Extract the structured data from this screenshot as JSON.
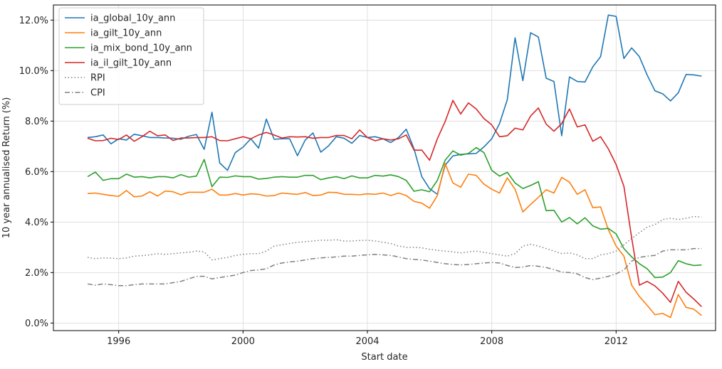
{
  "chart_data": {
    "type": "line",
    "title": "",
    "xlabel": "Start date",
    "ylabel": "10 year annualised Return (%)",
    "xlim": [
      1993.9,
      2015.2
    ],
    "ylim": [
      -0.3,
      12.6
    ],
    "x_ticks": [
      1996,
      2000,
      2004,
      2008,
      2012
    ],
    "y_ticks": [
      0,
      2,
      4,
      6,
      8,
      10,
      12
    ],
    "y_tick_labels": [
      "0.0%",
      "2.0%",
      "4.0%",
      "6.0%",
      "8.0%",
      "10.0%",
      "12.0%"
    ],
    "grid": true,
    "legend_position": "top-left",
    "x": [
      1995.0,
      1995.25,
      1995.5,
      1995.75,
      1996.0,
      1996.25,
      1996.5,
      1996.75,
      1997.0,
      1997.25,
      1997.5,
      1997.75,
      1998.0,
      1998.25,
      1998.5,
      1998.75,
      1999.0,
      1999.25,
      1999.5,
      1999.75,
      2000.0,
      2000.25,
      2000.5,
      2000.75,
      2001.0,
      2001.25,
      2001.5,
      2001.75,
      2002.0,
      2002.25,
      2002.5,
      2002.75,
      2003.0,
      2003.25,
      2003.5,
      2003.75,
      2004.0,
      2004.25,
      2004.5,
      2004.75,
      2005.0,
      2005.25,
      2005.5,
      2005.75,
      2006.0,
      2006.25,
      2006.5,
      2006.75,
      2007.0,
      2007.25,
      2007.5,
      2007.75,
      2008.0,
      2008.25,
      2008.5,
      2008.75,
      2009.0,
      2009.25,
      2009.5,
      2009.75,
      2010.0,
      2010.25,
      2010.5,
      2010.75,
      2011.0,
      2011.25,
      2011.5,
      2011.75,
      2012.0,
      2012.25,
      2012.5,
      2012.75,
      2013.0,
      2013.25,
      2013.5,
      2013.75,
      2014.0,
      2014.25,
      2014.5,
      2014.75
    ],
    "series": [
      {
        "name": "ia_global_10y_ann",
        "color": "#1f77b4",
        "style": "solid",
        "values": [
          7.35,
          7.38,
          7.45,
          7.1,
          7.3,
          7.25,
          7.48,
          7.42,
          7.35,
          7.35,
          7.33,
          7.32,
          7.28,
          7.4,
          7.47,
          6.88,
          8.35,
          6.34,
          6.05,
          6.75,
          6.97,
          7.3,
          6.93,
          8.08,
          7.28,
          7.3,
          7.3,
          6.63,
          7.25,
          7.53,
          6.77,
          7.02,
          7.38,
          7.32,
          7.12,
          7.43,
          7.35,
          7.38,
          7.3,
          7.15,
          7.35,
          7.68,
          6.9,
          5.8,
          5.32,
          5.1,
          6.25,
          6.62,
          6.68,
          6.7,
          6.72,
          6.98,
          7.3,
          7.9,
          8.85,
          11.3,
          9.6,
          11.5,
          11.33,
          9.7,
          9.57,
          7.42,
          9.75,
          9.57,
          9.55,
          10.15,
          10.55,
          12.2,
          12.15,
          10.48,
          10.9,
          10.55,
          9.82,
          9.2,
          9.08,
          8.8,
          9.12,
          9.85,
          9.83,
          9.78
        ]
      },
      {
        "name": "ia_gilt_10y_ann",
        "color": "#ff7f0e",
        "style": "solid",
        "values": [
          5.13,
          5.15,
          5.1,
          5.05,
          5.02,
          5.25,
          5.0,
          5.03,
          5.2,
          5.03,
          5.23,
          5.2,
          5.08,
          5.18,
          5.18,
          5.18,
          5.3,
          5.07,
          5.07,
          5.13,
          5.07,
          5.12,
          5.1,
          5.03,
          5.05,
          5.15,
          5.12,
          5.1,
          5.17,
          5.05,
          5.07,
          5.18,
          5.17,
          5.1,
          5.1,
          5.08,
          5.12,
          5.1,
          5.15,
          5.05,
          5.15,
          5.05,
          4.82,
          4.75,
          4.55,
          5.05,
          6.32,
          5.55,
          5.38,
          5.9,
          5.85,
          5.5,
          5.3,
          5.15,
          5.75,
          5.3,
          4.4,
          4.7,
          4.98,
          5.28,
          5.15,
          5.77,
          5.58,
          5.1,
          5.28,
          4.57,
          4.6,
          3.7,
          3.05,
          2.65,
          1.5,
          1.05,
          0.7,
          0.33,
          0.38,
          0.22,
          1.13,
          0.62,
          0.55,
          0.3
        ]
      },
      {
        "name": "ia_mix_bond_10y_ann",
        "color": "#2ca02c",
        "style": "solid",
        "values": [
          5.8,
          5.98,
          5.65,
          5.72,
          5.72,
          5.9,
          5.78,
          5.8,
          5.75,
          5.8,
          5.8,
          5.75,
          5.88,
          5.78,
          5.82,
          6.48,
          5.4,
          5.78,
          5.77,
          5.83,
          5.8,
          5.8,
          5.7,
          5.73,
          5.78,
          5.8,
          5.78,
          5.78,
          5.85,
          5.85,
          5.68,
          5.75,
          5.8,
          5.72,
          5.83,
          5.75,
          5.75,
          5.85,
          5.82,
          5.87,
          5.8,
          5.65,
          5.22,
          5.28,
          5.2,
          5.65,
          6.45,
          6.82,
          6.65,
          6.72,
          6.95,
          6.75,
          6.05,
          5.82,
          5.97,
          5.55,
          5.33,
          5.45,
          5.6,
          4.45,
          4.47,
          4.0,
          4.18,
          3.93,
          4.17,
          3.85,
          3.72,
          3.75,
          3.53,
          2.95,
          2.62,
          2.35,
          2.15,
          1.8,
          1.82,
          2.0,
          2.47,
          2.35,
          2.28,
          2.3
        ]
      },
      {
        "name": "ia_il_gilt_10y_ann",
        "color": "#d62728",
        "style": "solid",
        "values": [
          7.32,
          7.22,
          7.23,
          7.32,
          7.27,
          7.45,
          7.2,
          7.38,
          7.6,
          7.42,
          7.45,
          7.23,
          7.33,
          7.33,
          7.35,
          7.35,
          7.38,
          7.23,
          7.22,
          7.3,
          7.38,
          7.3,
          7.45,
          7.55,
          7.45,
          7.33,
          7.38,
          7.37,
          7.38,
          7.32,
          7.35,
          7.35,
          7.43,
          7.43,
          7.3,
          7.65,
          7.35,
          7.22,
          7.3,
          7.25,
          7.3,
          7.45,
          6.85,
          6.85,
          6.45,
          7.3,
          7.98,
          8.82,
          8.28,
          8.72,
          8.48,
          8.1,
          7.85,
          7.38,
          7.42,
          7.72,
          7.65,
          8.2,
          8.52,
          7.88,
          7.6,
          7.9,
          8.48,
          7.77,
          7.85,
          7.2,
          7.38,
          6.9,
          6.28,
          5.42,
          3.38,
          1.5,
          1.65,
          1.47,
          1.18,
          0.82,
          1.65,
          1.22,
          0.95,
          0.65
        ]
      },
      {
        "name": "RPI",
        "color": "#808080",
        "style": "dotted",
        "values": [
          2.6,
          2.55,
          2.58,
          2.57,
          2.55,
          2.58,
          2.65,
          2.67,
          2.7,
          2.75,
          2.72,
          2.75,
          2.78,
          2.8,
          2.85,
          2.82,
          2.5,
          2.55,
          2.6,
          2.68,
          2.72,
          2.75,
          2.75,
          2.85,
          3.05,
          3.1,
          3.15,
          3.2,
          3.22,
          3.25,
          3.28,
          3.28,
          3.3,
          3.25,
          3.25,
          3.27,
          3.28,
          3.25,
          3.2,
          3.15,
          3.05,
          3.0,
          3.0,
          2.98,
          2.92,
          2.88,
          2.85,
          2.82,
          2.78,
          2.82,
          2.85,
          2.8,
          2.75,
          2.7,
          2.65,
          2.75,
          3.05,
          3.12,
          3.05,
          2.95,
          2.85,
          2.75,
          2.78,
          2.7,
          2.55,
          2.55,
          2.7,
          2.75,
          2.85,
          3.1,
          3.35,
          3.58,
          3.8,
          3.9,
          4.1,
          4.15,
          4.1,
          4.15,
          4.22,
          4.2
        ]
      },
      {
        "name": "CPI",
        "color": "#808080",
        "style": "dashdot",
        "values": [
          1.55,
          1.5,
          1.55,
          1.52,
          1.48,
          1.48,
          1.52,
          1.55,
          1.55,
          1.55,
          1.55,
          1.6,
          1.65,
          1.75,
          1.85,
          1.85,
          1.75,
          1.8,
          1.85,
          1.9,
          2.0,
          2.08,
          2.1,
          2.15,
          2.3,
          2.38,
          2.42,
          2.45,
          2.5,
          2.55,
          2.58,
          2.6,
          2.62,
          2.65,
          2.65,
          2.68,
          2.7,
          2.72,
          2.7,
          2.68,
          2.62,
          2.55,
          2.52,
          2.5,
          2.45,
          2.4,
          2.35,
          2.32,
          2.3,
          2.32,
          2.35,
          2.38,
          2.4,
          2.38,
          2.28,
          2.2,
          2.22,
          2.28,
          2.25,
          2.2,
          2.12,
          2.02,
          2.0,
          1.95,
          1.8,
          1.72,
          1.78,
          1.85,
          1.95,
          2.1,
          2.45,
          2.6,
          2.65,
          2.68,
          2.85,
          2.9,
          2.9,
          2.9,
          2.95,
          2.95
        ]
      }
    ]
  }
}
